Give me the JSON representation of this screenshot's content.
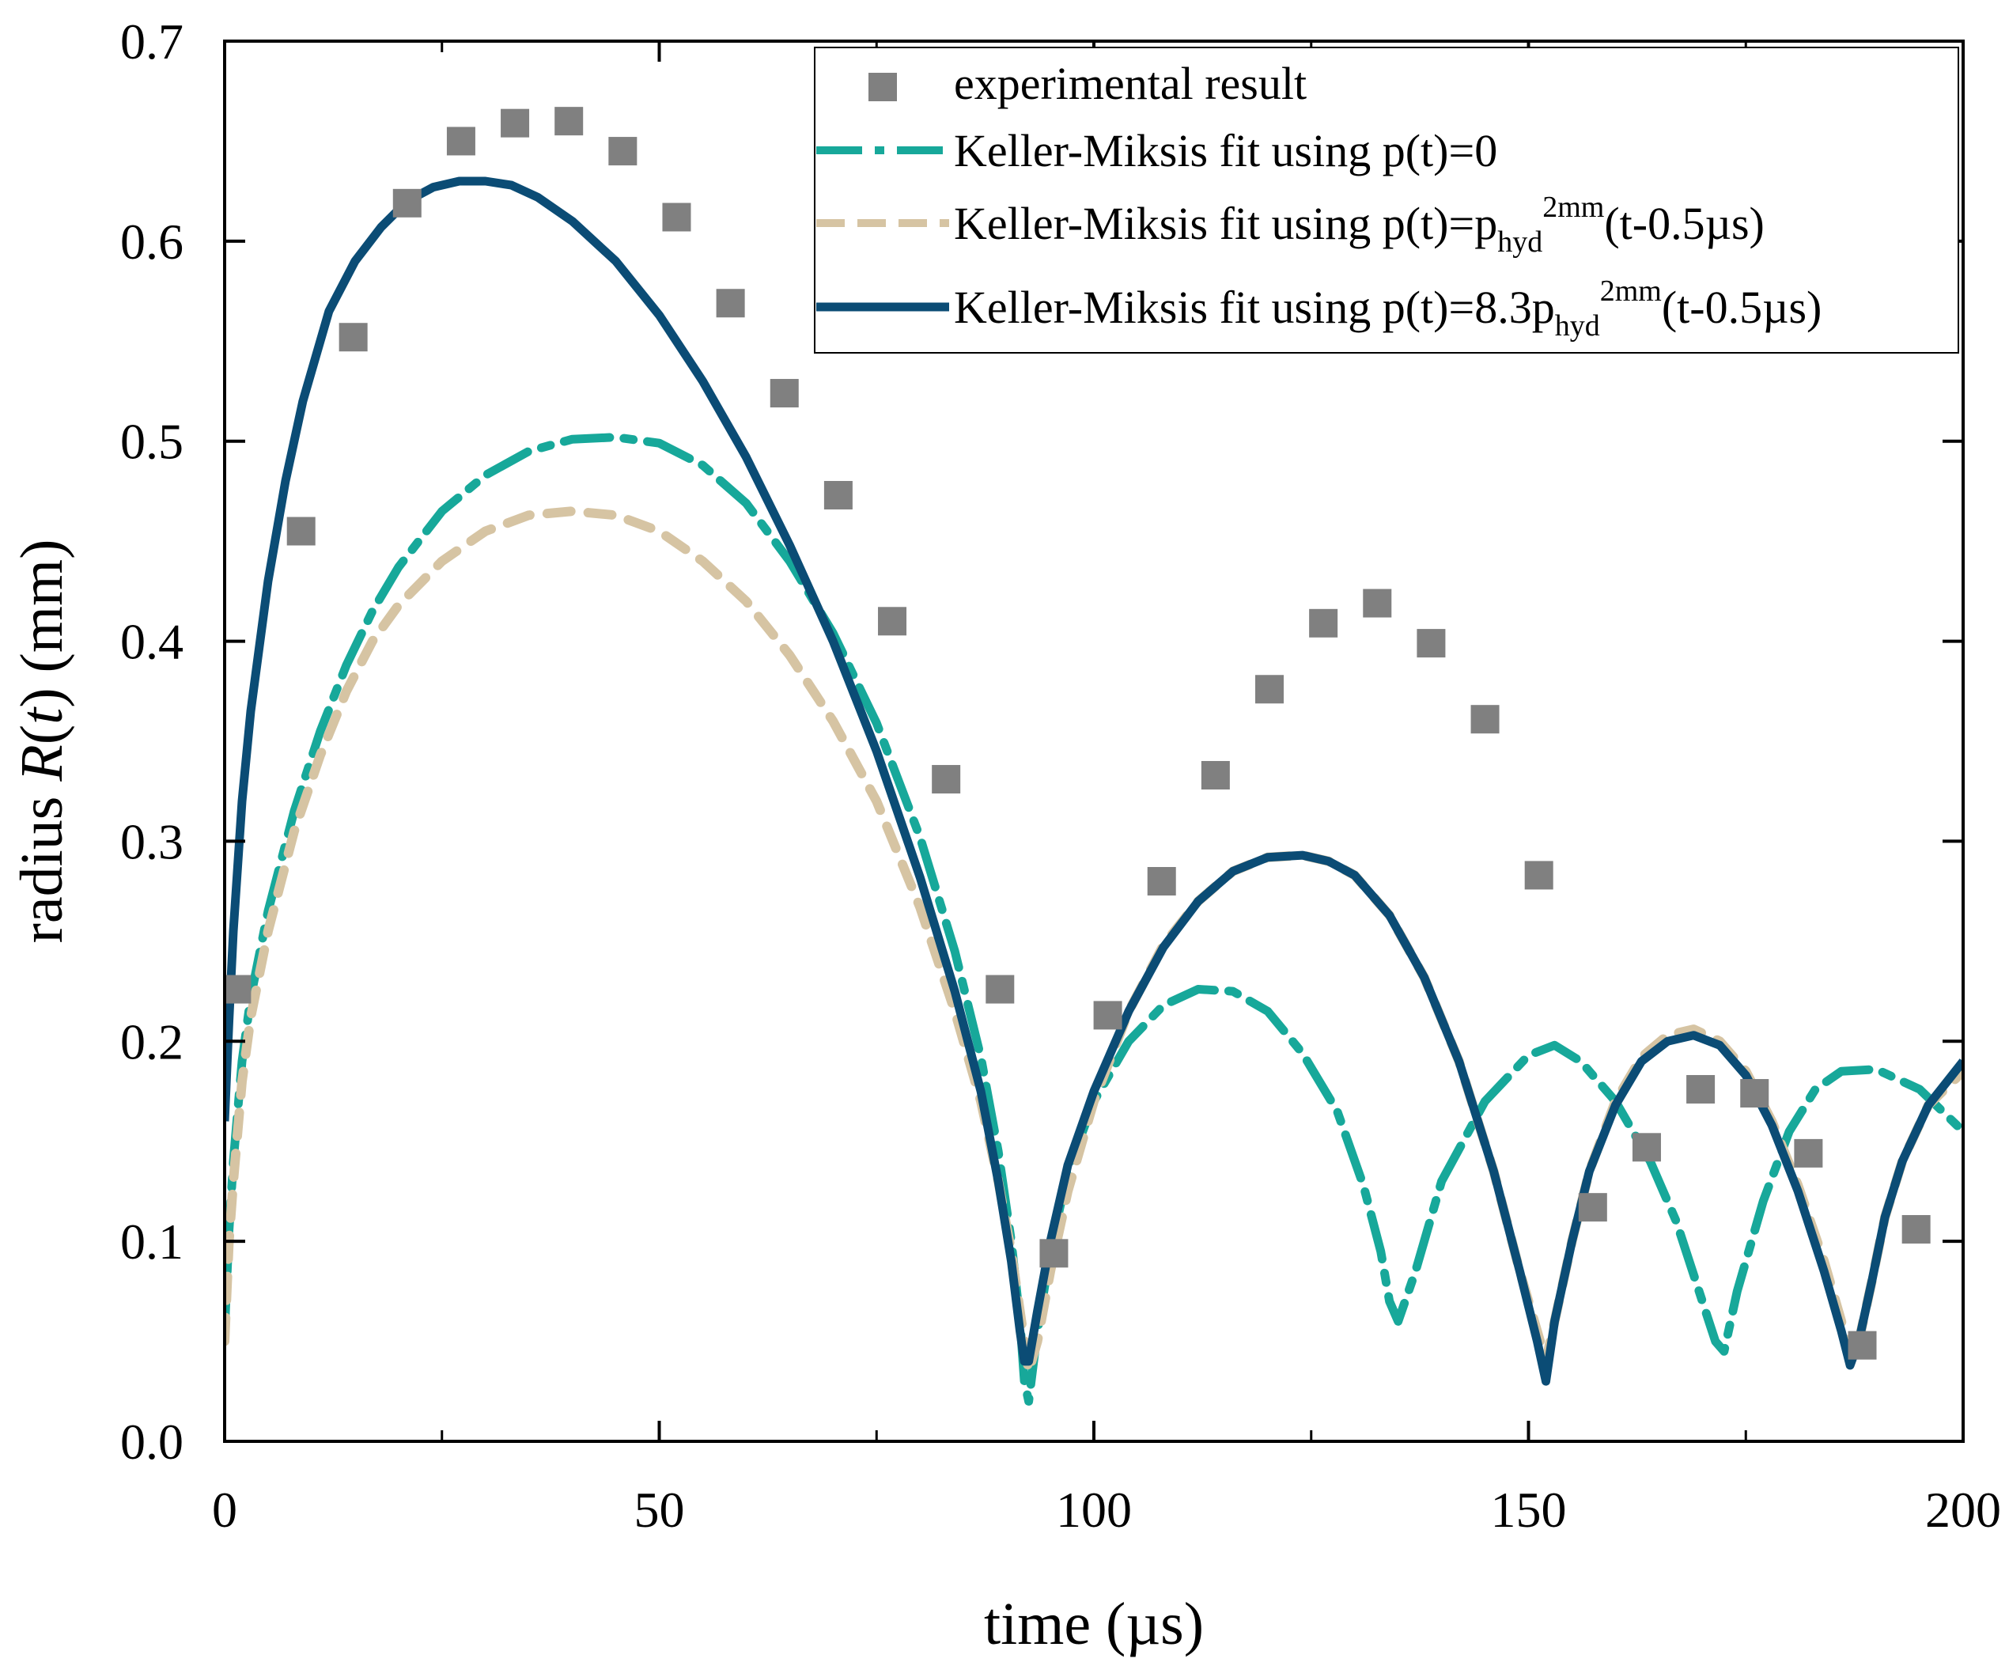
{
  "chart_data": {
    "type": "line",
    "xlabel": "time (µs)",
    "ylabel_prefix": "radius ",
    "ylabel_italic": "R",
    "ylabel_open": "(",
    "ylabel_italic_t": "t",
    "ylabel_suffix": ") (mm)",
    "xlim": [
      0,
      200
    ],
    "ylim": [
      0,
      0.7
    ],
    "x_ticks": [
      0,
      50,
      100,
      150,
      200
    ],
    "y_ticks": [
      0.0,
      0.1,
      0.2,
      0.3,
      0.4,
      0.5,
      0.6,
      0.7
    ],
    "x_tick_labels": [
      "0",
      "50",
      "100",
      "150",
      "200"
    ],
    "y_tick_labels": [
      "0.0",
      "0.1",
      "0.2",
      "0.3",
      "0.4",
      "0.5",
      "0.6",
      "0.7"
    ],
    "grid": false,
    "legend_position": "top-right",
    "series": [
      {
        "name": "experimental result",
        "style": "square-markers",
        "color": "#808080",
        "x": [
          1.4,
          8.8,
          14.8,
          21.0,
          27.2,
          33.4,
          39.6,
          45.8,
          52.0,
          58.2,
          64.4,
          70.6,
          76.8,
          83.0,
          89.2,
          95.4,
          101.6,
          107.8,
          114.0,
          120.2,
          126.4,
          132.6,
          138.8,
          145.0,
          151.2,
          157.4,
          163.6,
          169.8,
          176.0,
          182.2,
          188.4,
          194.6
        ],
        "y": [
          0.226,
          0.455,
          0.552,
          0.619,
          0.65,
          0.659,
          0.66,
          0.645,
          0.612,
          0.569,
          0.524,
          0.473,
          0.41,
          0.331,
          0.226,
          0.094,
          0.213,
          0.28,
          0.333,
          0.376,
          0.409,
          0.419,
          0.399,
          0.361,
          0.283,
          0.117,
          0.147,
          0.176,
          0.174,
          0.144,
          0.048,
          0.106
        ]
      },
      {
        "name_prefix": "Keller-Miksis fit using p(t)=0",
        "style": "dash-dot",
        "color": "#17A89A",
        "x": [
          0,
          0.5,
          1,
          2,
          3,
          5,
          8,
          11,
          14,
          17,
          20,
          25,
          30,
          35,
          40,
          45,
          50,
          55,
          60,
          65,
          70,
          75,
          80,
          84,
          87,
          89,
          90.5,
          91.5,
          92,
          92.5,
          93.5,
          95,
          97,
          100,
          104,
          108,
          112,
          116,
          120,
          124,
          128,
          131,
          133,
          134,
          135,
          137,
          140,
          145,
          150,
          153,
          156,
          160,
          164,
          167,
          170,
          171.5,
          172.5,
          174,
          177,
          180,
          183,
          186,
          190,
          195,
          200
        ],
        "y": [
          0.055,
          0.105,
          0.14,
          0.19,
          0.222,
          0.265,
          0.315,
          0.355,
          0.388,
          0.415,
          0.437,
          0.465,
          0.483,
          0.495,
          0.501,
          0.502,
          0.499,
          0.488,
          0.469,
          0.44,
          0.404,
          0.359,
          0.302,
          0.245,
          0.192,
          0.145,
          0.1,
          0.06,
          0.03,
          0.02,
          0.055,
          0.095,
          0.135,
          0.17,
          0.2,
          0.218,
          0.226,
          0.225,
          0.215,
          0.194,
          0.165,
          0.128,
          0.095,
          0.07,
          0.06,
          0.085,
          0.13,
          0.17,
          0.193,
          0.198,
          0.19,
          0.17,
          0.14,
          0.11,
          0.07,
          0.05,
          0.045,
          0.075,
          0.12,
          0.155,
          0.176,
          0.185,
          0.186,
          0.176,
          0.155
        ]
      },
      {
        "name_prefix": "Keller-Miksis fit using p(t)=p",
        "name_sub": "hyd",
        "name_sup": "2mm",
        "name_suffix": "(t-0.5µs)",
        "style": "dashed",
        "color": "#D6C4A3",
        "x": [
          0,
          0.5,
          1,
          2,
          3,
          5,
          8,
          11,
          14,
          17,
          20,
          25,
          30,
          35,
          40,
          45,
          50,
          55,
          60,
          65,
          70,
          75,
          80,
          84,
          87,
          89,
          90.5,
          91.5,
          92.5,
          93.5,
          95,
          97,
          100,
          104,
          108,
          112,
          116,
          120,
          124,
          127,
          130,
          134,
          138,
          142,
          146,
          149,
          151,
          152,
          153,
          155,
          157,
          160,
          163,
          166,
          169,
          172,
          175,
          178,
          181,
          184,
          186,
          187,
          188,
          189.5,
          191,
          193,
          196,
          200
        ],
        "y": [
          0.05,
          0.1,
          0.13,
          0.18,
          0.212,
          0.255,
          0.305,
          0.343,
          0.375,
          0.4,
          0.418,
          0.44,
          0.455,
          0.463,
          0.465,
          0.463,
          0.455,
          0.44,
          0.42,
          0.393,
          0.36,
          0.32,
          0.267,
          0.215,
          0.17,
          0.13,
          0.095,
          0.065,
          0.035,
          0.05,
          0.085,
          0.125,
          0.17,
          0.215,
          0.248,
          0.27,
          0.285,
          0.292,
          0.293,
          0.29,
          0.283,
          0.263,
          0.232,
          0.19,
          0.135,
          0.085,
          0.055,
          0.04,
          0.06,
          0.1,
          0.135,
          0.17,
          0.192,
          0.203,
          0.206,
          0.2,
          0.185,
          0.16,
          0.128,
          0.09,
          0.06,
          0.04,
          0.05,
          0.08,
          0.112,
          0.14,
          0.168,
          0.185
        ]
      },
      {
        "name_prefix": "Keller-Miksis fit using p(t)=8.3p",
        "name_sub": "hyd",
        "name_sup": "2mm",
        "name_suffix": "(t-0.5µs)",
        "style": "solid",
        "color": "#0B4C75",
        "x": [
          0,
          0.5,
          1,
          2,
          3,
          5,
          7,
          9,
          12,
          15,
          18,
          21,
          24,
          27,
          30,
          33,
          36,
          40,
          45,
          50,
          55,
          60,
          65,
          70,
          75,
          80,
          84,
          87,
          89,
          90.5,
          91.5,
          92,
          92.5,
          93.5,
          95,
          97,
          100,
          104,
          108,
          112,
          116,
          120,
          124,
          127,
          130,
          134,
          138,
          142,
          146,
          149,
          151,
          152,
          153,
          155,
          157,
          160,
          163,
          166,
          169,
          172,
          175,
          178,
          181,
          184,
          186,
          187,
          188,
          189.5,
          191,
          193,
          196,
          200
        ],
        "y": [
          0.16,
          0.21,
          0.255,
          0.32,
          0.365,
          0.43,
          0.48,
          0.52,
          0.565,
          0.59,
          0.607,
          0.62,
          0.627,
          0.63,
          0.63,
          0.628,
          0.622,
          0.61,
          0.59,
          0.563,
          0.53,
          0.492,
          0.448,
          0.4,
          0.345,
          0.282,
          0.225,
          0.175,
          0.13,
          0.09,
          0.055,
          0.04,
          0.04,
          0.065,
          0.1,
          0.138,
          0.175,
          0.215,
          0.247,
          0.27,
          0.285,
          0.292,
          0.293,
          0.29,
          0.283,
          0.263,
          0.232,
          0.19,
          0.135,
          0.085,
          0.05,
          0.03,
          0.06,
          0.1,
          0.135,
          0.168,
          0.19,
          0.2,
          0.203,
          0.198,
          0.183,
          0.158,
          0.125,
          0.085,
          0.055,
          0.038,
          0.05,
          0.08,
          0.112,
          0.14,
          0.168,
          0.19
        ]
      }
    ]
  }
}
